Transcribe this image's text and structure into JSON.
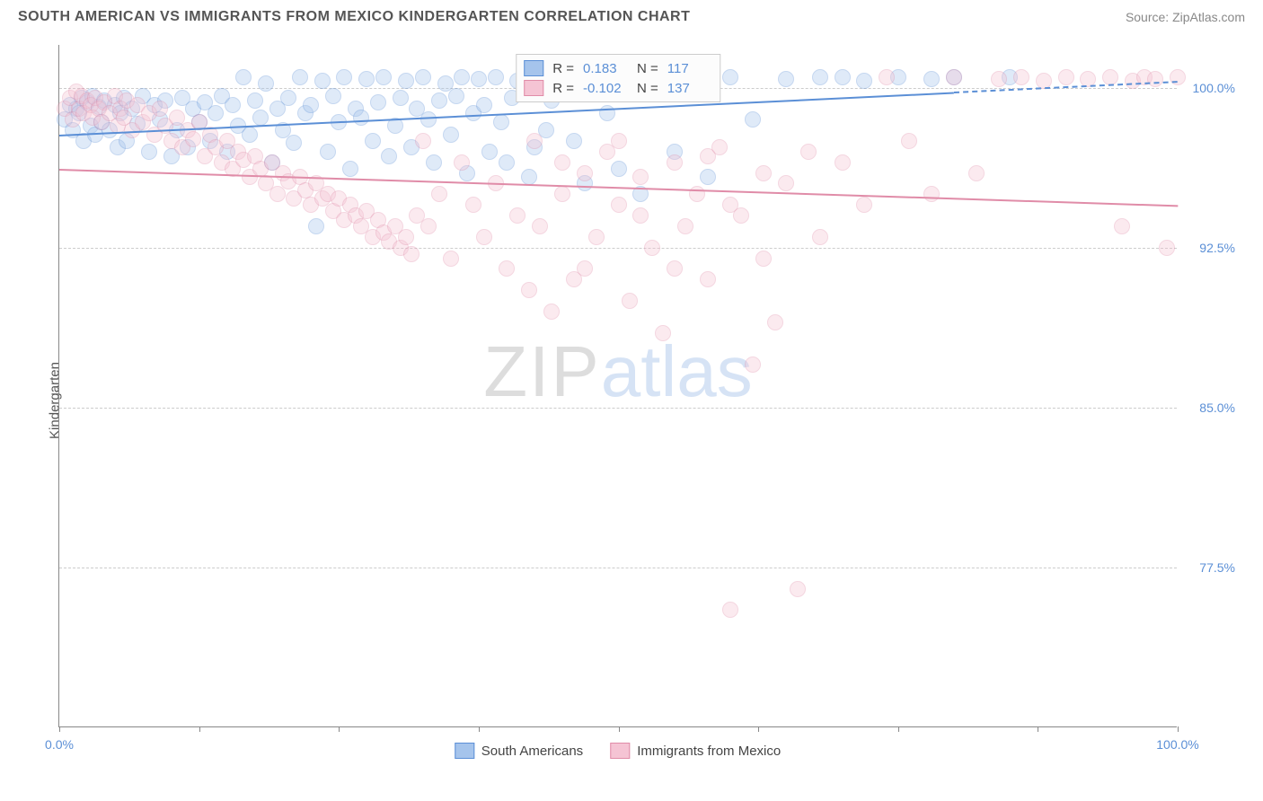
{
  "header": {
    "title": "SOUTH AMERICAN VS IMMIGRANTS FROM MEXICO KINDERGARTEN CORRELATION CHART",
    "source_prefix": "Source: ",
    "source_name": "ZipAtlas.com"
  },
  "chart": {
    "type": "scatter",
    "ylabel": "Kindergarten",
    "xlim": [
      0,
      100
    ],
    "ylim": [
      70,
      102
    ],
    "xtick_positions": [
      0,
      12.5,
      25,
      37.5,
      50,
      62.5,
      75,
      87.5,
      100
    ],
    "xtick_labels": {
      "0": "0.0%",
      "100": "100.0%"
    },
    "ytick_positions": [
      77.5,
      85.0,
      92.5,
      100.0
    ],
    "ytick_labels": [
      "77.5%",
      "85.0%",
      "92.5%",
      "100.0%"
    ],
    "grid_color": "#cccccc",
    "axis_color": "#888888",
    "background_color": "#ffffff",
    "label_fontsize": 15,
    "tick_fontsize": 14,
    "tick_color": "#5b8fd6",
    "marker_radius": 9,
    "marker_opacity": 0.35,
    "watermark": {
      "part1": "ZIP",
      "part2": "atlas"
    }
  },
  "series": [
    {
      "id": "south_americans",
      "label": "South Americans",
      "color_fill": "#a5c4ec",
      "color_stroke": "#5b8fd6",
      "R": "0.183",
      "N": "117",
      "trend": {
        "x0": 0,
        "y0": 97.8,
        "x1": 80,
        "y1": 99.8,
        "extend_x": 100,
        "extend_y": 100.3,
        "width": 2.5
      },
      "points": [
        [
          0.5,
          98.5
        ],
        [
          1,
          99.2
        ],
        [
          1.2,
          98.0
        ],
        [
          1.5,
          99.0
        ],
        [
          1.8,
          98.8
        ],
        [
          2,
          99.5
        ],
        [
          2.2,
          97.5
        ],
        [
          2.5,
          99.3
        ],
        [
          2.8,
          98.2
        ],
        [
          3,
          99.6
        ],
        [
          3.2,
          97.8
        ],
        [
          3.5,
          99.1
        ],
        [
          3.8,
          98.4
        ],
        [
          4,
          99.4
        ],
        [
          4.5,
          98.0
        ],
        [
          5,
          99.2
        ],
        [
          5.2,
          97.2
        ],
        [
          5.5,
          98.8
        ],
        [
          5.8,
          99.5
        ],
        [
          6,
          97.5
        ],
        [
          6.5,
          99.0
        ],
        [
          7,
          98.3
        ],
        [
          7.5,
          99.6
        ],
        [
          8,
          97.0
        ],
        [
          8.5,
          99.2
        ],
        [
          9,
          98.5
        ],
        [
          9.5,
          99.4
        ],
        [
          10,
          96.8
        ],
        [
          10.5,
          98.0
        ],
        [
          11,
          99.5
        ],
        [
          11.5,
          97.2
        ],
        [
          12,
          99.0
        ],
        [
          12.5,
          98.4
        ],
        [
          13,
          99.3
        ],
        [
          13.5,
          97.5
        ],
        [
          14,
          98.8
        ],
        [
          14.5,
          99.6
        ],
        [
          15,
          97.0
        ],
        [
          15.5,
          99.2
        ],
        [
          16,
          98.2
        ],
        [
          16.5,
          100.5
        ],
        [
          17,
          97.8
        ],
        [
          17.5,
          99.4
        ],
        [
          18,
          98.6
        ],
        [
          18.5,
          100.2
        ],
        [
          19,
          96.5
        ],
        [
          19.5,
          99.0
        ],
        [
          20,
          98.0
        ],
        [
          20.5,
          99.5
        ],
        [
          21,
          97.4
        ],
        [
          21.5,
          100.5
        ],
        [
          22,
          98.8
        ],
        [
          22.5,
          99.2
        ],
        [
          23,
          93.5
        ],
        [
          23.5,
          100.3
        ],
        [
          24,
          97.0
        ],
        [
          24.5,
          99.6
        ],
        [
          25,
          98.4
        ],
        [
          25.5,
          100.5
        ],
        [
          26,
          96.2
        ],
        [
          26.5,
          99.0
        ],
        [
          27,
          98.6
        ],
        [
          27.5,
          100.4
        ],
        [
          28,
          97.5
        ],
        [
          28.5,
          99.3
        ],
        [
          29,
          100.5
        ],
        [
          29.5,
          96.8
        ],
        [
          30,
          98.2
        ],
        [
          30.5,
          99.5
        ],
        [
          31,
          100.3
        ],
        [
          31.5,
          97.2
        ],
        [
          32,
          99.0
        ],
        [
          32.5,
          100.5
        ],
        [
          33,
          98.5
        ],
        [
          33.5,
          96.5
        ],
        [
          34,
          99.4
        ],
        [
          34.5,
          100.2
        ],
        [
          35,
          97.8
        ],
        [
          35.5,
          99.6
        ],
        [
          36,
          100.5
        ],
        [
          36.5,
          96.0
        ],
        [
          37,
          98.8
        ],
        [
          37.5,
          100.4
        ],
        [
          38,
          99.2
        ],
        [
          38.5,
          97.0
        ],
        [
          39,
          100.5
        ],
        [
          39.5,
          98.4
        ],
        [
          40,
          96.5
        ],
        [
          40.5,
          99.5
        ],
        [
          41,
          100.3
        ],
        [
          42,
          95.8
        ],
        [
          42.5,
          97.2
        ],
        [
          43,
          100.5
        ],
        [
          43.5,
          98.0
        ],
        [
          44,
          99.4
        ],
        [
          45,
          100.2
        ],
        [
          46,
          97.5
        ],
        [
          47,
          95.5
        ],
        [
          48,
          100.5
        ],
        [
          49,
          98.8
        ],
        [
          50,
          96.2
        ],
        [
          51,
          100.4
        ],
        [
          52,
          95.0
        ],
        [
          53,
          100.5
        ],
        [
          55,
          97.0
        ],
        [
          56,
          100.3
        ],
        [
          58,
          95.8
        ],
        [
          60,
          100.5
        ],
        [
          62,
          98.5
        ],
        [
          65,
          100.4
        ],
        [
          68,
          100.5
        ],
        [
          70,
          100.5
        ],
        [
          72,
          100.3
        ],
        [
          75,
          100.5
        ],
        [
          78,
          100.4
        ],
        [
          80,
          100.5
        ],
        [
          85,
          100.5
        ]
      ]
    },
    {
      "id": "immigrants_mexico",
      "label": "Immigrants from Mexico",
      "color_fill": "#f5c4d4",
      "color_stroke": "#e08ca8",
      "R": "-0.102",
      "N": "137",
      "trend": {
        "x0": 0,
        "y0": 96.2,
        "x1": 100,
        "y1": 94.5,
        "width": 2
      },
      "points": [
        [
          0.5,
          99.0
        ],
        [
          1,
          99.5
        ],
        [
          1.2,
          98.5
        ],
        [
          1.5,
          99.8
        ],
        [
          1.8,
          99.0
        ],
        [
          2,
          99.6
        ],
        [
          2.2,
          98.8
        ],
        [
          2.5,
          99.4
        ],
        [
          2.8,
          99.2
        ],
        [
          3,
          98.6
        ],
        [
          3.2,
          99.5
        ],
        [
          3.5,
          99.0
        ],
        [
          3.8,
          98.4
        ],
        [
          4,
          99.3
        ],
        [
          4.5,
          98.8
        ],
        [
          5,
          99.6
        ],
        [
          5.2,
          98.2
        ],
        [
          5.5,
          99.0
        ],
        [
          5.8,
          98.6
        ],
        [
          6,
          99.4
        ],
        [
          6.5,
          98.0
        ],
        [
          7,
          99.2
        ],
        [
          7.5,
          98.4
        ],
        [
          8,
          98.8
        ],
        [
          8.5,
          97.8
        ],
        [
          9,
          99.0
        ],
        [
          9.5,
          98.2
        ],
        [
          10,
          97.5
        ],
        [
          10.5,
          98.6
        ],
        [
          11,
          97.2
        ],
        [
          11.5,
          98.0
        ],
        [
          12,
          97.6
        ],
        [
          12.5,
          98.4
        ],
        [
          13,
          96.8
        ],
        [
          13.5,
          97.8
        ],
        [
          14,
          97.2
        ],
        [
          14.5,
          96.5
        ],
        [
          15,
          97.5
        ],
        [
          15.5,
          96.2
        ],
        [
          16,
          97.0
        ],
        [
          16.5,
          96.6
        ],
        [
          17,
          95.8
        ],
        [
          17.5,
          96.8
        ],
        [
          18,
          96.2
        ],
        [
          18.5,
          95.5
        ],
        [
          19,
          96.5
        ],
        [
          19.5,
          95.0
        ],
        [
          20,
          96.0
        ],
        [
          20.5,
          95.6
        ],
        [
          21,
          94.8
        ],
        [
          21.5,
          95.8
        ],
        [
          22,
          95.2
        ],
        [
          22.5,
          94.5
        ],
        [
          23,
          95.5
        ],
        [
          23.5,
          94.8
        ],
        [
          24,
          95.0
        ],
        [
          24.5,
          94.2
        ],
        [
          25,
          94.8
        ],
        [
          25.5,
          93.8
        ],
        [
          26,
          94.5
        ],
        [
          26.5,
          94.0
        ],
        [
          27,
          93.5
        ],
        [
          27.5,
          94.2
        ],
        [
          28,
          93.0
        ],
        [
          28.5,
          93.8
        ],
        [
          29,
          93.2
        ],
        [
          29.5,
          92.8
        ],
        [
          30,
          93.5
        ],
        [
          30.5,
          92.5
        ],
        [
          31,
          93.0
        ],
        [
          31.5,
          92.2
        ],
        [
          32,
          94.0
        ],
        [
          32.5,
          97.5
        ],
        [
          33,
          93.5
        ],
        [
          34,
          95.0
        ],
        [
          35,
          92.0
        ],
        [
          36,
          96.5
        ],
        [
          37,
          94.5
        ],
        [
          38,
          93.0
        ],
        [
          39,
          95.5
        ],
        [
          40,
          91.5
        ],
        [
          41,
          94.0
        ],
        [
          42,
          90.5
        ],
        [
          42.5,
          97.5
        ],
        [
          43,
          93.5
        ],
        [
          44,
          89.5
        ],
        [
          45,
          95.0
        ],
        [
          46,
          91.0
        ],
        [
          47,
          96.0
        ],
        [
          48,
          93.0
        ],
        [
          49,
          97.0
        ],
        [
          50,
          94.5
        ],
        [
          51,
          90.0
        ],
        [
          52,
          95.8
        ],
        [
          53,
          92.5
        ],
        [
          54,
          88.5
        ],
        [
          55,
          96.5
        ],
        [
          56,
          93.5
        ],
        [
          57,
          95.0
        ],
        [
          58,
          91.0
        ],
        [
          59,
          97.2
        ],
        [
          60,
          75.5
        ],
        [
          61,
          94.0
        ],
        [
          62,
          87.0
        ],
        [
          63,
          96.0
        ],
        [
          64,
          89.0
        ],
        [
          65,
          95.5
        ],
        [
          66,
          76.5
        ],
        [
          67,
          97.0
        ],
        [
          68,
          93.0
        ],
        [
          70,
          96.5
        ],
        [
          72,
          94.5
        ],
        [
          74,
          100.5
        ],
        [
          76,
          97.5
        ],
        [
          78,
          95.0
        ],
        [
          80,
          100.5
        ],
        [
          82,
          96.0
        ],
        [
          84,
          100.4
        ],
        [
          86,
          100.5
        ],
        [
          88,
          100.3
        ],
        [
          90,
          100.5
        ],
        [
          92,
          100.4
        ],
        [
          94,
          100.5
        ],
        [
          95,
          93.5
        ],
        [
          96,
          100.3
        ],
        [
          97,
          100.5
        ],
        [
          98,
          100.4
        ],
        [
          99,
          92.5
        ],
        [
          100,
          100.5
        ],
        [
          45,
          96.5
        ],
        [
          47,
          91.5
        ],
        [
          50,
          97.5
        ],
        [
          52,
          94.0
        ],
        [
          55,
          91.5
        ],
        [
          58,
          96.8
        ],
        [
          60,
          94.5
        ],
        [
          63,
          92.0
        ]
      ]
    }
  ],
  "stat_box": {
    "R_label": "R  = ",
    "N_label": "N  = "
  },
  "legend": {
    "items": [
      "South Americans",
      "Immigrants from Mexico"
    ]
  }
}
